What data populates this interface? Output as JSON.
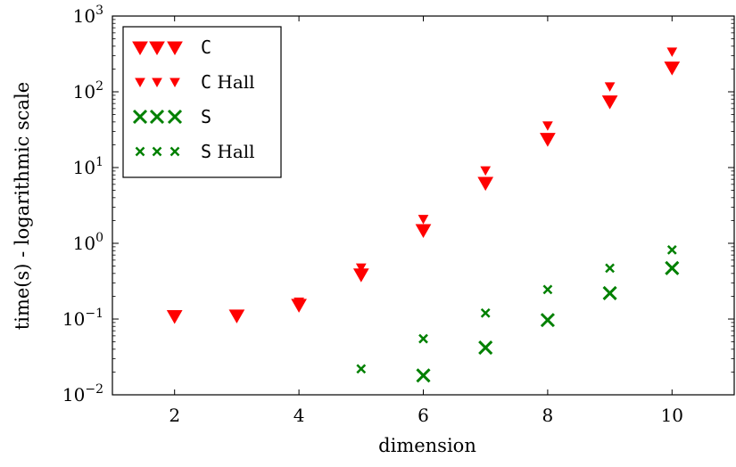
{
  "chart_data": {
    "type": "scatter",
    "title": "",
    "xlabel": "dimension",
    "ylabel": "time(s) - logarithmic scale",
    "xlim": [
      1,
      11
    ],
    "ylim": [
      0.01,
      1000
    ],
    "y_scale": "log",
    "x_ticks": [
      2,
      4,
      6,
      8,
      10
    ],
    "y_ticks": [
      {
        "value": 0.01,
        "base": "10",
        "exp": "−2"
      },
      {
        "value": 0.1,
        "base": "10",
        "exp": "−1"
      },
      {
        "value": 1,
        "base": "10",
        "exp": "0"
      },
      {
        "value": 10,
        "base": "10",
        "exp": "1"
      },
      {
        "value": 100,
        "base": "10",
        "exp": "2"
      },
      {
        "value": 1000,
        "base": "10",
        "exp": "3"
      }
    ],
    "grid": false,
    "legend_position": "top-left",
    "series": [
      {
        "name_code": "C",
        "name_suffix": "",
        "marker": "triangle-down-large",
        "color": "#ff0000",
        "points": [
          [
            2,
            0.11
          ],
          [
            3,
            0.112
          ],
          [
            4,
            0.155
          ],
          [
            5,
            0.39
          ],
          [
            6,
            1.5
          ],
          [
            7,
            6.3
          ],
          [
            8,
            24
          ],
          [
            9,
            75
          ],
          [
            10,
            210
          ]
        ]
      },
      {
        "name_code": "C",
        "name_suffix": "Hall",
        "marker": "triangle-down-small",
        "color": "#ff0000",
        "points": [
          [
            4,
            0.17
          ],
          [
            5,
            0.48
          ],
          [
            6,
            2.1
          ],
          [
            7,
            9.2
          ],
          [
            8,
            36
          ],
          [
            9,
            118
          ],
          [
            10,
            340
          ]
        ]
      },
      {
        "name_code": "S",
        "name_suffix": "",
        "marker": "x-large",
        "color": "#008000",
        "points": [
          [
            6,
            0.018
          ],
          [
            7,
            0.042
          ],
          [
            8,
            0.097
          ],
          [
            9,
            0.22
          ],
          [
            10,
            0.47
          ]
        ]
      },
      {
        "name_code": "S",
        "name_suffix": "Hall",
        "marker": "x-small",
        "color": "#008000",
        "points": [
          [
            5,
            0.022
          ],
          [
            6,
            0.055
          ],
          [
            7,
            0.12
          ],
          [
            8,
            0.245
          ],
          [
            9,
            0.47
          ],
          [
            10,
            0.82
          ]
        ]
      }
    ]
  }
}
